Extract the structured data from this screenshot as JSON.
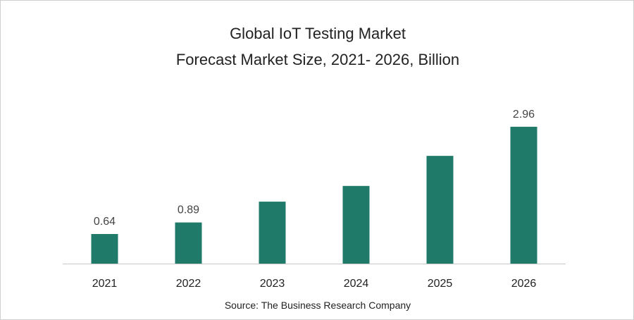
{
  "chart_data": {
    "type": "bar",
    "title": "Global IoT Testing Market",
    "subtitle": "Forecast Market Size, 2021- 2026, Billion",
    "categories": [
      "2021",
      "2022",
      "2023",
      "2024",
      "2025",
      "2026"
    ],
    "values": [
      0.64,
      0.89,
      1.34,
      1.68,
      2.33,
      2.96
    ],
    "data_labels": [
      "0.64",
      "0.89",
      "",
      "",
      "",
      "2.96"
    ],
    "xlabel": "",
    "ylabel": "",
    "ylim": [
      0,
      3.2
    ],
    "grid": false,
    "bar_color": "#1f7a6a",
    "source": "Source: The Business Research Company"
  }
}
